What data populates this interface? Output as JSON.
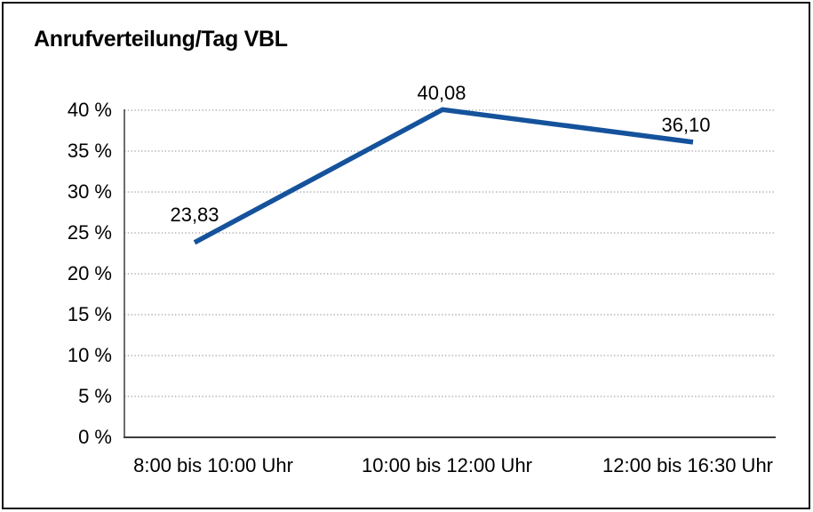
{
  "frame": {
    "background": "#ffffff",
    "border_color": "#0c0c0c"
  },
  "chart_data": {
    "type": "line",
    "title": "Anrufverteilung/Tag VBL",
    "categories": [
      "8:00 bis 10:00 Uhr",
      "10:00 bis 12:00 Uhr",
      "12:00 bis 16:30 Uhr"
    ],
    "values": [
      23.83,
      40.08,
      36.1
    ],
    "data_labels": [
      "23,83",
      "40,08",
      "36,10"
    ],
    "xlabel": "",
    "ylabel": "",
    "ylim": [
      0,
      40
    ],
    "y_tick_step": 5,
    "y_tick_labels": [
      "0 %",
      "5 %",
      "10 %",
      "15 %",
      "20 %",
      "25 %",
      "30 %",
      "35 %",
      "40 %"
    ],
    "grid": "horizontal-dotted",
    "legend_position": "none",
    "series_color": "#15529C"
  },
  "colors": {
    "line": "#15529C",
    "grid": "#8c8c8c",
    "axis": "#3d3d3d",
    "text": "#000000"
  }
}
